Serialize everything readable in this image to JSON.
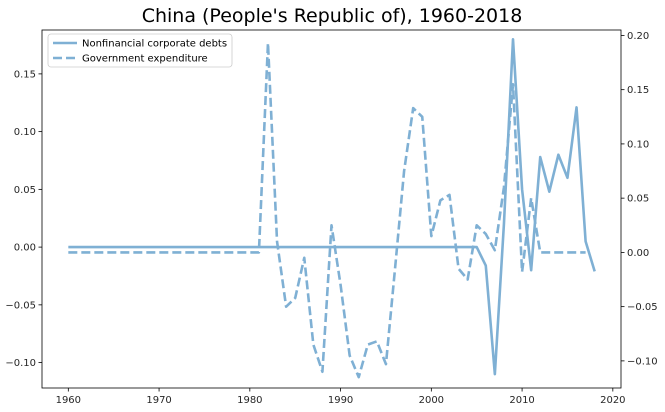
{
  "chart_data": {
    "type": "line",
    "title": "China (People's Republic of), 1960-2018",
    "xlabel": "",
    "ylabel_left": "",
    "ylabel_right": "",
    "xlim": [
      1957.1,
      2020.9
    ],
    "ylim_left": [
      -0.122,
      0.188
    ],
    "ylim_right": [
      -0.125,
      0.205
    ],
    "x_ticks": [
      1960,
      1970,
      1980,
      1990,
      2000,
      2010,
      2020
    ],
    "y_ticks_left": [
      -0.1,
      -0.05,
      0.0,
      0.05,
      0.1,
      0.15
    ],
    "y_tick_labels_left": [
      "−0.10",
      "−0.05",
      "0.00",
      "0.05",
      "0.10",
      "0.15"
    ],
    "y_ticks_right": [
      -0.1,
      -0.05,
      0.0,
      0.05,
      0.1,
      0.15,
      0.2
    ],
    "y_tick_labels_right": [
      "−0.10",
      "−0.05",
      "0.00",
      "0.05",
      "0.10",
      "0.15",
      "0.20"
    ],
    "grid": false,
    "legend_position": "top-left",
    "color": "#7fb0d4",
    "series": [
      {
        "name": "Nonfinancial corporate debts",
        "axis": "left",
        "style": "solid",
        "x": [
          1960,
          1961,
          1962,
          1963,
          1964,
          1965,
          1966,
          1967,
          1968,
          1969,
          1970,
          1971,
          1972,
          1973,
          1974,
          1975,
          1976,
          1977,
          1978,
          1979,
          1980,
          1981,
          1982,
          1983,
          1984,
          1985,
          1986,
          1987,
          1988,
          1989,
          1990,
          1991,
          1992,
          1993,
          1994,
          1995,
          1996,
          1997,
          1998,
          1999,
          2000,
          2001,
          2002,
          2003,
          2004,
          2005,
          2006,
          2007,
          2008,
          2009,
          2010,
          2011,
          2012,
          2013,
          2014,
          2015,
          2016,
          2017,
          2018
        ],
        "values": [
          0,
          0,
          0,
          0,
          0,
          0,
          0,
          0,
          0,
          0,
          0,
          0,
          0,
          0,
          0,
          0,
          0,
          0,
          0,
          0,
          0,
          0,
          0,
          0,
          0,
          0,
          0,
          0,
          0,
          0,
          0,
          0,
          0,
          0,
          0,
          0,
          0,
          0,
          0,
          0,
          0,
          0,
          0,
          0,
          0,
          0,
          -0.016,
          -0.11,
          0.02,
          0.18,
          0.05,
          -0.02,
          0.078,
          0.048,
          0.08,
          0.06,
          0.121,
          0.005,
          -0.021
        ]
      },
      {
        "name": "Government expenditure",
        "axis": "right",
        "style": "dashed",
        "x": [
          1960,
          1961,
          1962,
          1963,
          1964,
          1965,
          1966,
          1967,
          1968,
          1969,
          1970,
          1971,
          1972,
          1973,
          1974,
          1975,
          1976,
          1977,
          1978,
          1979,
          1980,
          1981,
          1982,
          1983,
          1984,
          1985,
          1986,
          1987,
          1988,
          1989,
          1990,
          1991,
          1992,
          1993,
          1994,
          1995,
          1996,
          1997,
          1998,
          1999,
          2000,
          2001,
          2002,
          2003,
          2004,
          2005,
          2006,
          2007,
          2008,
          2009,
          2010,
          2011,
          2012,
          2013,
          2014,
          2015,
          2016,
          2017
        ],
        "values": [
          0,
          0,
          0,
          0,
          0,
          0,
          0,
          0,
          0,
          0,
          0,
          0,
          0,
          0,
          0,
          0,
          0,
          0,
          0,
          0,
          0,
          0,
          0.193,
          0.01,
          -0.05,
          -0.042,
          -0.005,
          -0.085,
          -0.11,
          0.025,
          -0.03,
          -0.095,
          -0.115,
          -0.085,
          -0.082,
          -0.103,
          -0.015,
          0.075,
          0.133,
          0.125,
          0.015,
          0.048,
          0.053,
          -0.015,
          -0.025,
          0.025,
          0.017,
          0.002,
          0.06,
          0.155,
          -0.018,
          0.05,
          0,
          0,
          0,
          0,
          0,
          0
        ]
      }
    ]
  }
}
